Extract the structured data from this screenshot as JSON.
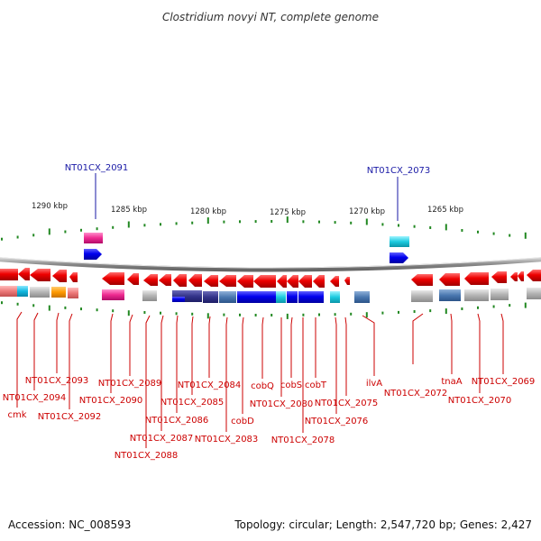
{
  "title": "Clostridium novyi NT, complete genome",
  "footer": {
    "accession": "Accession: NC_008593",
    "summary": "Topology: circular; Length: 2,547,720 bp; Genes: 2,427"
  },
  "colors": {
    "forward_gene": "#ee0000",
    "reverse_gene": "#0000ee",
    "label_red": "#cc0000",
    "label_blue": "#1a1aa6",
    "tick": "#228822",
    "backbone": "#888888"
  },
  "scale_labels": [
    "1290 kbp",
    "1285 kbp",
    "1280 kbp",
    "1275 kbp",
    "1270 kbp",
    "1265 kbp"
  ],
  "top_labels": [
    "NT01CX_2091",
    "NT01CX_2073"
  ],
  "bottom_labels": [
    "cmk",
    "NT01CX_2094",
    "NT01CX_2093",
    "NT01CX_2092",
    "NT01CX_2090",
    "NT01CX_2089",
    "NT01CX_2088",
    "NT01CX_2087",
    "NT01CX_2086",
    "NT01CX_2085",
    "NT01CX_2084",
    "NT01CX_2083",
    "cobD",
    "cobQ",
    "NT01CX_2080",
    "cobS",
    "NT01CX_2078",
    "cobT",
    "NT01CX_2076",
    "NT01CX_2075",
    "ilvA",
    "NT01CX_2072",
    "tnaA",
    "NT01CX_2070",
    "NT01CX_2069"
  ]
}
